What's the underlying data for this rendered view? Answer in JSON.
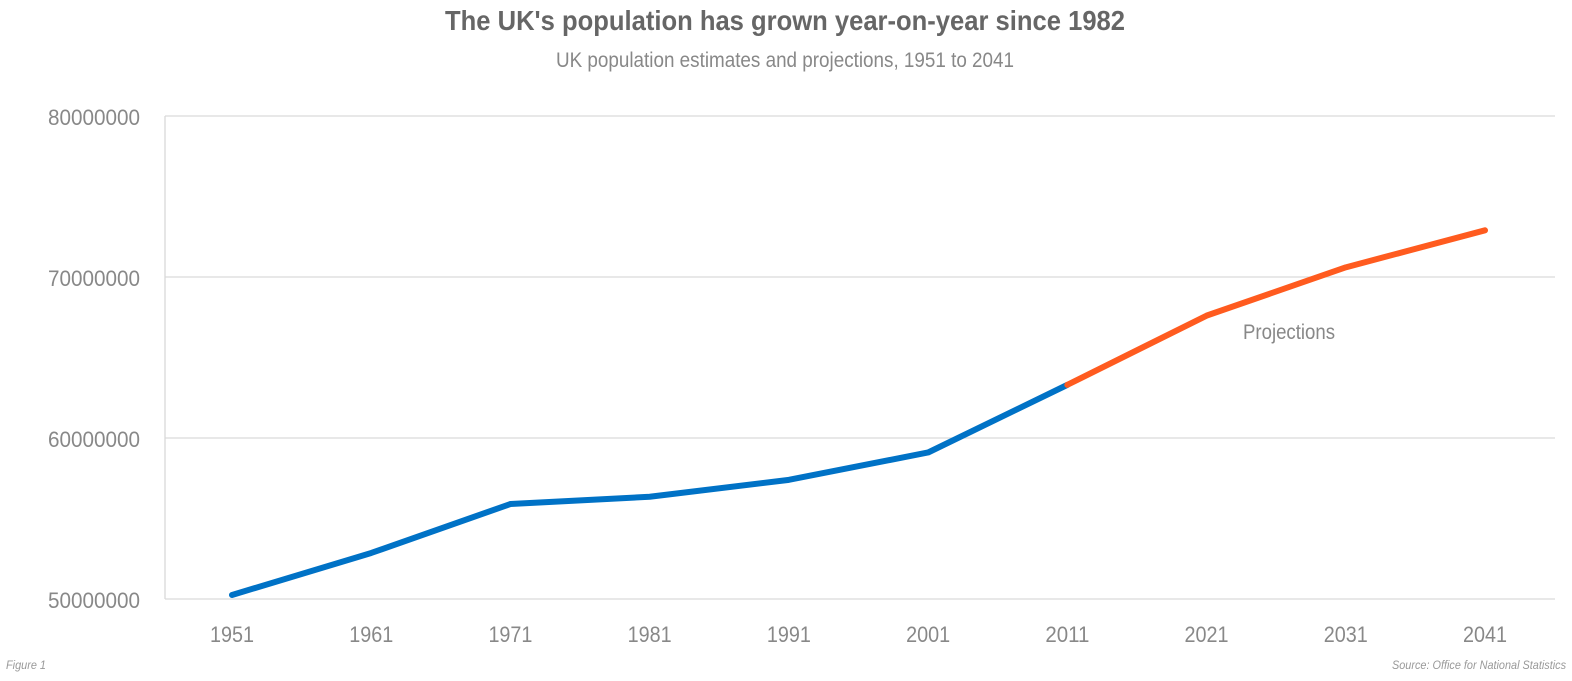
{
  "chart_data": {
    "type": "line",
    "title": "The UK's population has grown year-on-year since 1982",
    "subtitle": "UK population estimates and projections, 1951 to 2041",
    "x": [
      "1951",
      "1961",
      "1971",
      "1981",
      "1991",
      "2001",
      "2011",
      "2021",
      "2031",
      "2041"
    ],
    "series": [
      {
        "values": [
          50250000,
          52860000,
          55900000,
          56350000,
          57400000,
          59100000,
          63300000,
          null,
          null,
          null
        ],
        "color": "#0072c6"
      },
      {
        "name": "Projections",
        "values": [
          null,
          null,
          null,
          null,
          null,
          null,
          63300000,
          67600000,
          70600000,
          72900000
        ],
        "color": "#ff5b1f"
      }
    ],
    "y_ticks": [
      "50000000",
      "60000000",
      "70000000",
      "80000000"
    ],
    "ylim": [
      50000000,
      80000000
    ],
    "grid": true,
    "annotation": "Projections",
    "figure_label": "Figure 1",
    "source": "Source: Office for National Statistics"
  }
}
